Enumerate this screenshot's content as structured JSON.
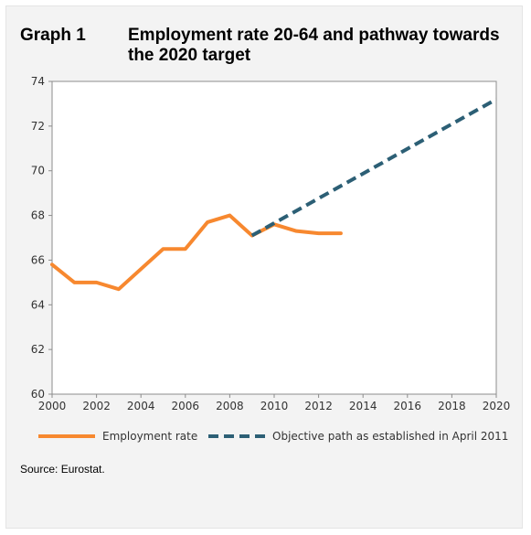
{
  "header": {
    "graph_number": "Graph 1",
    "title": "Employment rate 20-64 and pathway towards the 2020 target"
  },
  "source": "Source: Eurostat.",
  "chart_data": {
    "type": "line",
    "xlim": [
      2000,
      2020
    ],
    "ylim": [
      60,
      74
    ],
    "x_ticks": [
      2000,
      2002,
      2004,
      2006,
      2008,
      2010,
      2012,
      2014,
      2016,
      2018,
      2020
    ],
    "y_ticks": [
      60,
      62,
      64,
      66,
      68,
      70,
      72,
      74
    ],
    "grid": false,
    "legend_placement": "bottom",
    "series": [
      {
        "name": "Employment rate",
        "color": "#f7882f",
        "style": "solid",
        "points": [
          [
            2000,
            65.8
          ],
          [
            2001,
            65.0
          ],
          [
            2002,
            65.0
          ],
          [
            2003,
            64.7
          ],
          [
            2004,
            65.6
          ],
          [
            2005,
            66.5
          ],
          [
            2006,
            66.5
          ],
          [
            2007,
            67.7
          ],
          [
            2008,
            68.0
          ],
          [
            2009,
            67.1
          ],
          [
            2010,
            67.6
          ],
          [
            2011,
            67.3
          ],
          [
            2012,
            67.2
          ],
          [
            2013,
            67.2
          ]
        ]
      },
      {
        "name": "Objective path as established in April 2011",
        "color": "#2c5f75",
        "style": "dashed",
        "points": [
          [
            2009,
            67.1
          ],
          [
            2020,
            73.2
          ]
        ]
      }
    ]
  }
}
